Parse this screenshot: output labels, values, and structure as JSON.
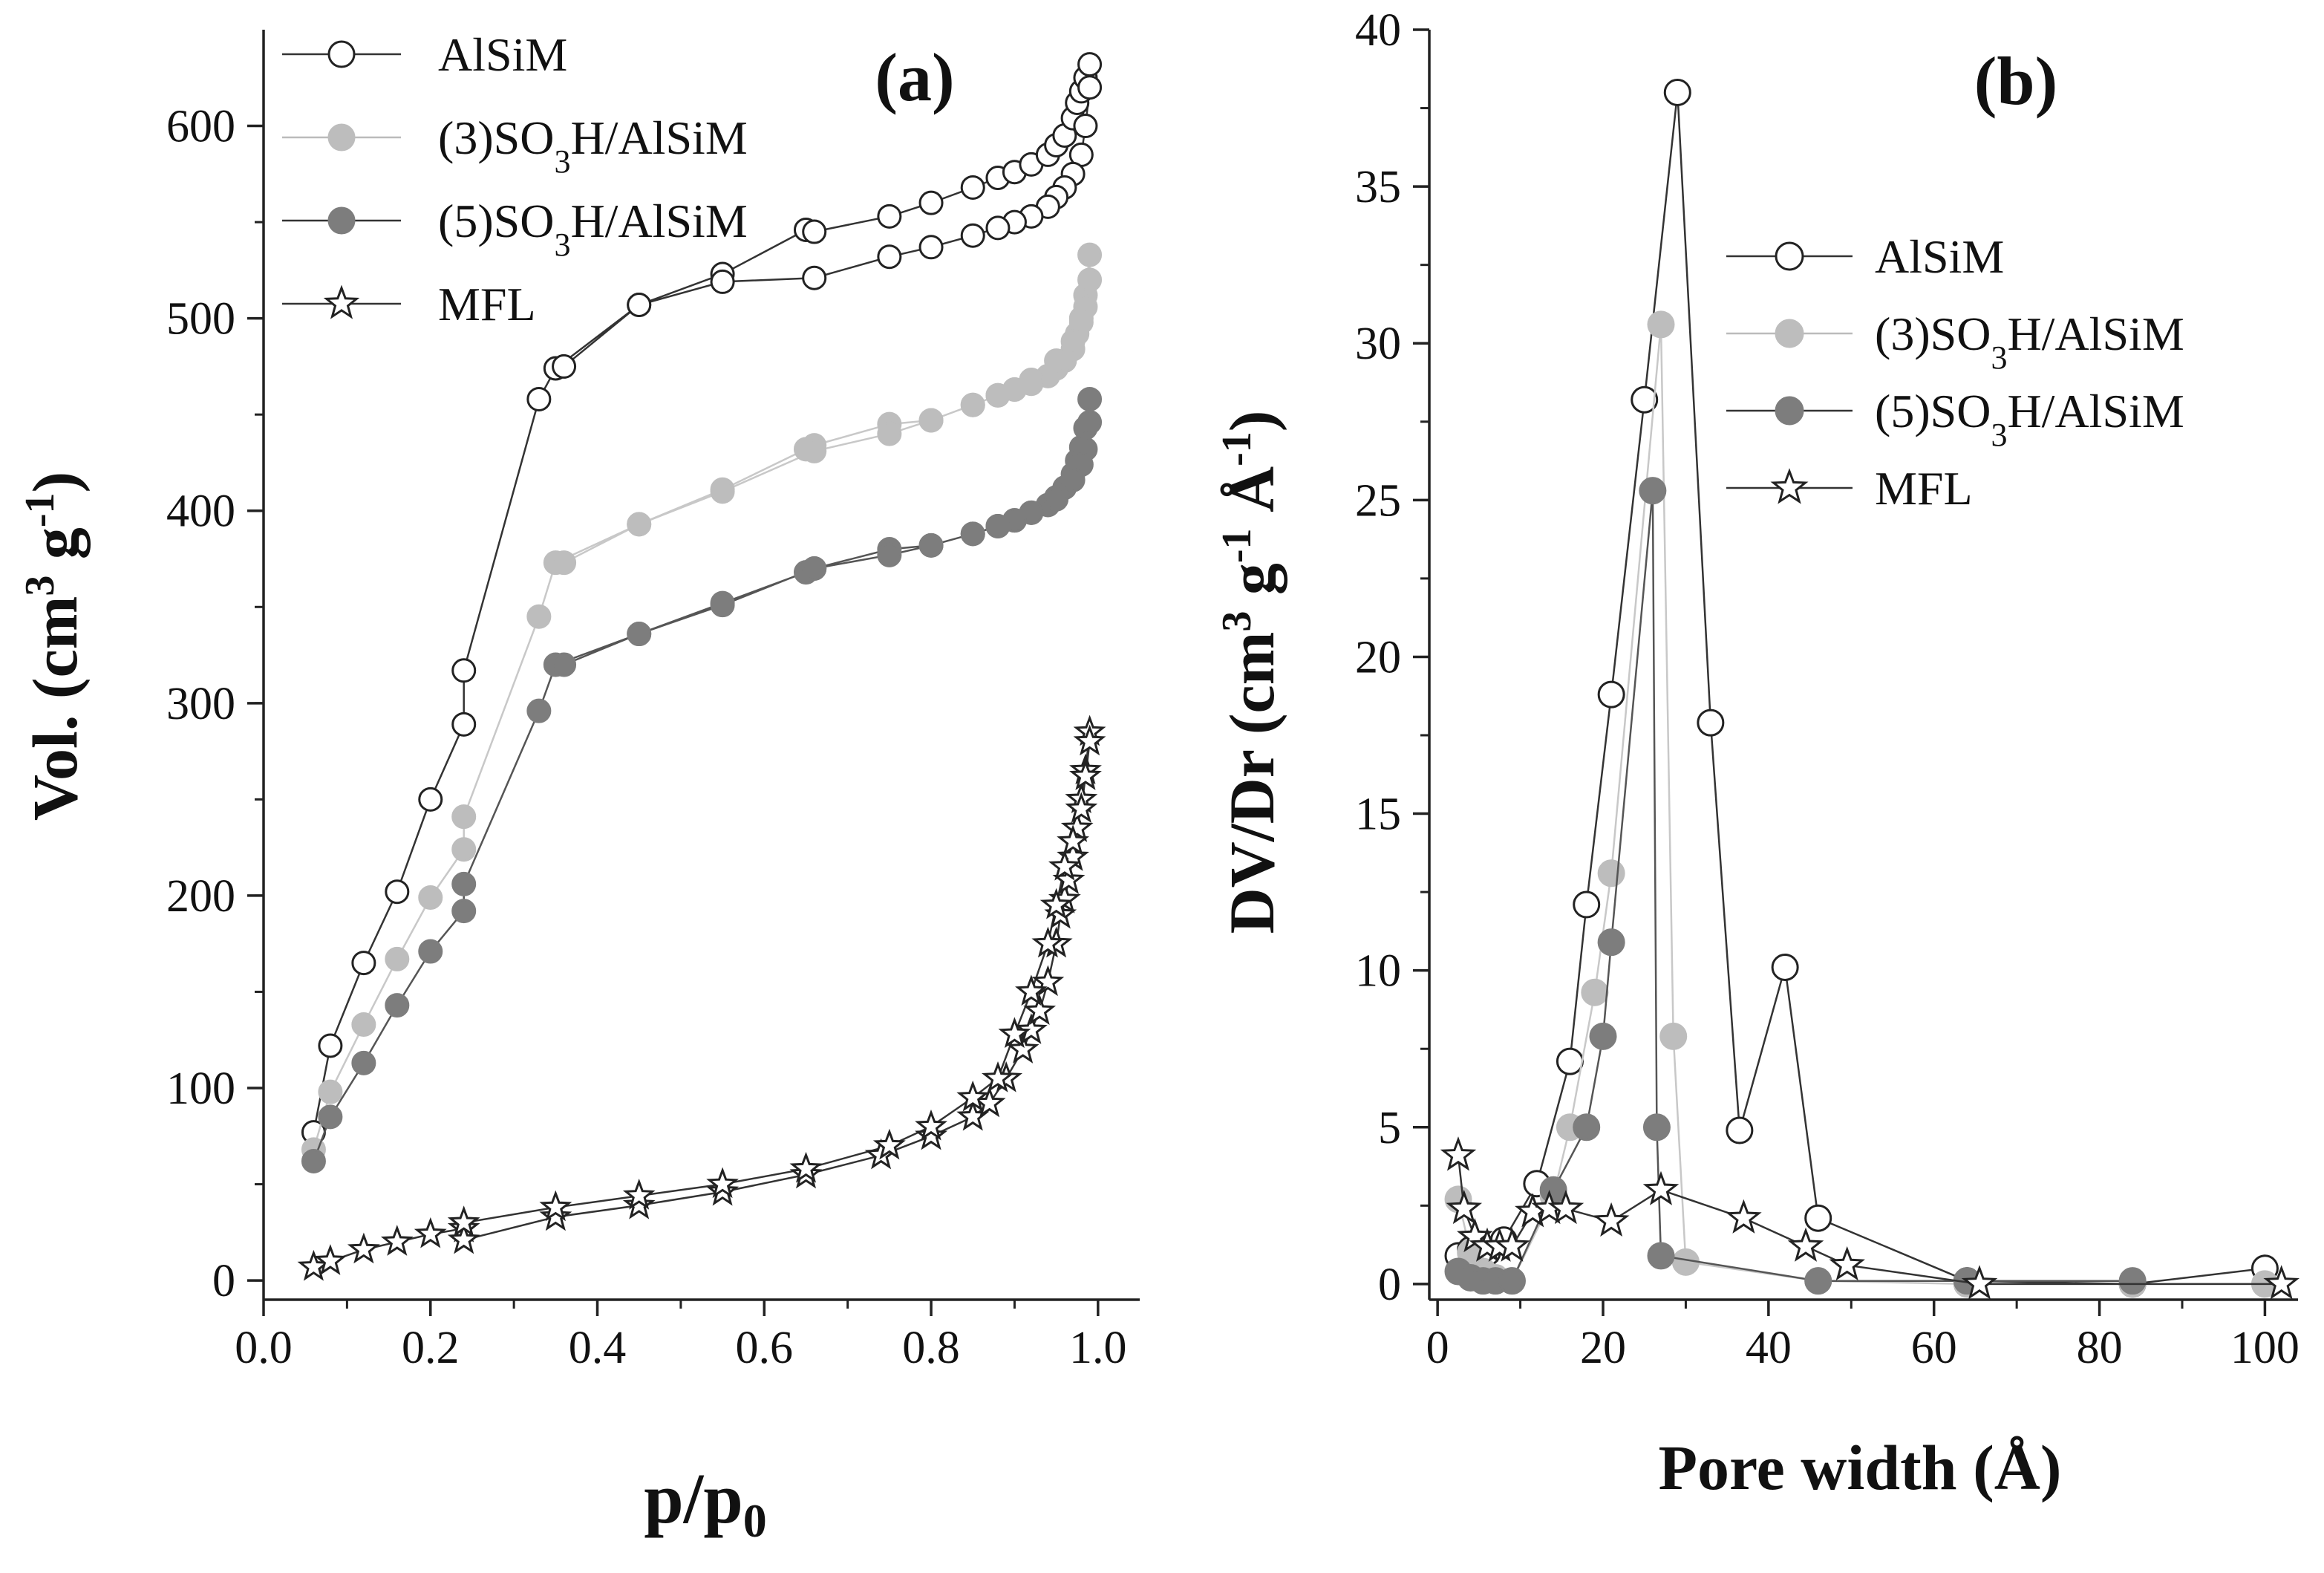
{
  "chart_data": [
    {
      "type": "line",
      "panel_label": "(a)",
      "xlabel": "p/p0",
      "xlabel_parts": {
        "main": "p/p",
        "sub": "0"
      },
      "ylabel": "Vol. (cm3 g-1)",
      "ylabel_parts": {
        "main": "Vol. (cm",
        "sup1": "3",
        "mid": " g",
        "sup2": "-1",
        "end": ")"
      },
      "xlim": [
        0.0,
        1.05
      ],
      "ylim": [
        -10,
        650
      ],
      "xticks": [
        "0.0",
        "0.2",
        "0.4",
        "0.6",
        "0.8",
        "1.0"
      ],
      "yticks": [
        "0",
        "100",
        "200",
        "300",
        "400",
        "500",
        "600"
      ],
      "legend_position": "top-left",
      "series": [
        {
          "name": "AlSiM",
          "legend": {
            "pre": "AlSiM",
            "sub": "",
            "post": ""
          },
          "marker": "open-circle",
          "color": "#ffffff",
          "line": "#333333",
          "x": [
            0.06,
            0.08,
            0.12,
            0.16,
            0.2,
            0.24,
            0.24,
            0.33,
            0.35,
            0.45,
            0.55,
            0.65,
            0.66,
            0.75,
            0.8,
            0.85,
            0.88,
            0.9,
            0.92,
            0.94,
            0.95,
            0.96,
            0.97,
            0.975,
            0.98,
            0.985,
            0.99,
            0.99,
            0.985,
            0.98,
            0.97,
            0.96,
            0.95,
            0.94,
            0.92,
            0.9,
            0.88,
            0.85,
            0.8,
            0.75,
            0.66,
            0.55,
            0.45,
            0.36
          ],
          "y": [
            77,
            122,
            165,
            202,
            250,
            289,
            317,
            458,
            474,
            507,
            523,
            546,
            545,
            553,
            560,
            568,
            573,
            576,
            580,
            585,
            590,
            595,
            604,
            612,
            618,
            625,
            632,
            620,
            600,
            585,
            575,
            568,
            563,
            558,
            553,
            550,
            547,
            543,
            537,
            532,
            521,
            519,
            507,
            475
          ]
        },
        {
          "name": "(3)SO3H/AlSiM",
          "legend": {
            "pre": "(3)SO",
            "sub": "3",
            "post": "H/AlSiM"
          },
          "marker": "filled-circle",
          "color": "#bdbdbd",
          "line": "#c8c8c8",
          "x": [
            0.06,
            0.08,
            0.12,
            0.16,
            0.2,
            0.24,
            0.24,
            0.33,
            0.35,
            0.45,
            0.55,
            0.65,
            0.66,
            0.75,
            0.8,
            0.85,
            0.88,
            0.9,
            0.92,
            0.94,
            0.95,
            0.96,
            0.97,
            0.975,
            0.98,
            0.985,
            0.99,
            0.99,
            0.985,
            0.98,
            0.97,
            0.95,
            0.92,
            0.9,
            0.88,
            0.85,
            0.8,
            0.75,
            0.66,
            0.55,
            0.45,
            0.36
          ],
          "y": [
            68,
            98,
            133,
            167,
            199,
            224,
            241,
            345,
            373,
            393,
            411,
            432,
            434,
            445,
            447,
            455,
            460,
            463,
            466,
            470,
            474,
            478,
            484,
            492,
            500,
            512,
            533,
            520,
            506,
            498,
            488,
            478,
            468,
            463,
            460,
            455,
            447,
            440,
            431,
            410,
            393,
            373
          ]
        },
        {
          "name": "(5)SO3H/AlSiM",
          "legend": {
            "pre": "(5)SO",
            "sub": "3",
            "post": "H/AlSiM"
          },
          "marker": "filled-circle",
          "color": "#7d7d7d",
          "line": "#555555",
          "x": [
            0.06,
            0.08,
            0.12,
            0.16,
            0.2,
            0.24,
            0.24,
            0.33,
            0.35,
            0.45,
            0.55,
            0.65,
            0.66,
            0.75,
            0.8,
            0.85,
            0.88,
            0.9,
            0.92,
            0.94,
            0.95,
            0.96,
            0.97,
            0.975,
            0.98,
            0.985,
            0.99,
            0.99,
            0.985,
            0.98,
            0.97,
            0.95,
            0.92,
            0.9,
            0.88,
            0.85,
            0.8,
            0.75,
            0.66,
            0.55,
            0.45,
            0.36
          ],
          "y": [
            62,
            85,
            113,
            143,
            171,
            192,
            206,
            296,
            320,
            336,
            352,
            368,
            370,
            380,
            382,
            388,
            392,
            395,
            399,
            403,
            407,
            412,
            419,
            426,
            433,
            443,
            458,
            446,
            432,
            424,
            416,
            406,
            399,
            395,
            392,
            388,
            382,
            377,
            370,
            351,
            336,
            320
          ]
        },
        {
          "name": "MFL",
          "legend": {
            "pre": "MFL",
            "sub": "",
            "post": ""
          },
          "marker": "open-star",
          "color": "#ffffff",
          "line": "#333333",
          "x": [
            0.06,
            0.08,
            0.12,
            0.16,
            0.2,
            0.24,
            0.24,
            0.35,
            0.45,
            0.55,
            0.65,
            0.74,
            0.8,
            0.85,
            0.87,
            0.89,
            0.91,
            0.92,
            0.93,
            0.94,
            0.95,
            0.955,
            0.96,
            0.965,
            0.97,
            0.975,
            0.98,
            0.985,
            0.99,
            0.99,
            0.985,
            0.98,
            0.97,
            0.96,
            0.95,
            0.94,
            0.92,
            0.9,
            0.88,
            0.85,
            0.8,
            0.75,
            0.65,
            0.55,
            0.45,
            0.35,
            0.24
          ],
          "y": [
            7,
            10,
            16,
            20,
            24,
            27,
            21,
            33,
            39,
            46,
            55,
            65,
            75,
            85,
            92,
            105,
            120,
            130,
            140,
            155,
            175,
            190,
            198,
            208,
            220,
            235,
            250,
            265,
            285,
            280,
            262,
            245,
            228,
            215,
            195,
            175,
            150,
            128,
            105,
            95,
            80,
            70,
            58,
            50,
            44,
            38,
            30
          ]
        }
      ]
    },
    {
      "type": "line",
      "panel_label": "(b)",
      "xlabel": "Pore width (Å)",
      "ylabel": "DV/Dr (cm3 g-1 Å-1)",
      "ylabel_parts": {
        "main": "DV/Dr (cm",
        "sup1": "3",
        "mid": " g",
        "sup2": "-1",
        "mid2": " Å",
        "sup3": "-1",
        "end": ")"
      },
      "xlim": [
        -1,
        104
      ],
      "ylim": [
        -0.5,
        40
      ],
      "xticks": [
        "0",
        "20",
        "40",
        "60",
        "80",
        "100"
      ],
      "yticks": [
        "0",
        "5",
        "10",
        "15",
        "20",
        "25",
        "30",
        "35",
        "40"
      ],
      "legend_position": "center-right",
      "series": [
        {
          "name": "AlSiM",
          "legend": {
            "pre": "AlSiM",
            "sub": "",
            "post": ""
          },
          "marker": "open-circle",
          "color": "#ffffff",
          "line": "#333333",
          "x": [
            2.5,
            4,
            6,
            8,
            12,
            16,
            18,
            21,
            25,
            29,
            33,
            36.5,
            42,
            46,
            64,
            84,
            100
          ],
          "y": [
            0.9,
            1.1,
            1.0,
            1.4,
            3.2,
            7.1,
            12.1,
            18.8,
            28.2,
            38.0,
            17.9,
            4.9,
            10.1,
            2.1,
            0.1,
            0.0,
            0.5
          ]
        },
        {
          "name": "(3)SO3H/AlSiM",
          "legend": {
            "pre": "(3)SO",
            "sub": "3",
            "post": "H/AlSiM"
          },
          "marker": "filled-circle",
          "color": "#bdbdbd",
          "line": "#c8c8c8",
          "x": [
            2.5,
            4,
            5.5,
            7,
            9,
            14,
            16,
            19,
            21,
            27,
            28.5,
            30,
            46,
            64,
            84,
            100
          ],
          "y": [
            2.7,
            1.0,
            0.4,
            0.2,
            0.1,
            2.8,
            5.0,
            9.3,
            13.1,
            30.6,
            7.9,
            0.7,
            0.1,
            0.0,
            0.0,
            0.0
          ]
        },
        {
          "name": "(5)SO3H/AlSiM",
          "legend": {
            "pre": "(5)SO",
            "sub": "3",
            "post": "H/AlSiM"
          },
          "marker": "filled-circle",
          "color": "#7d7d7d",
          "line": "#555555",
          "x": [
            2.5,
            4,
            5.5,
            7,
            9,
            14,
            18,
            20,
            21,
            26,
            26.5,
            27,
            46,
            64,
            84
          ],
          "y": [
            0.4,
            0.2,
            0.1,
            0.1,
            0.1,
            3.0,
            5.0,
            7.9,
            10.9,
            25.3,
            5.0,
            0.9,
            0.1,
            0.1,
            0.1
          ]
        },
        {
          "name": "MFL",
          "legend": {
            "pre": "MFL",
            "sub": "",
            "post": ""
          },
          "marker": "open-star",
          "color": "#ffffff",
          "line": "#333333",
          "x": [
            2.5,
            3.2,
            4.5,
            6,
            7.5,
            9,
            11.5,
            13.5,
            15.5,
            21,
            27,
            37,
            44.5,
            49.5,
            65.5,
            102
          ],
          "y": [
            4.1,
            2.4,
            1.5,
            1.2,
            1.2,
            1.2,
            2.3,
            2.4,
            2.4,
            2.0,
            3.0,
            2.1,
            1.2,
            0.6,
            0.0,
            0.0
          ]
        }
      ]
    }
  ]
}
